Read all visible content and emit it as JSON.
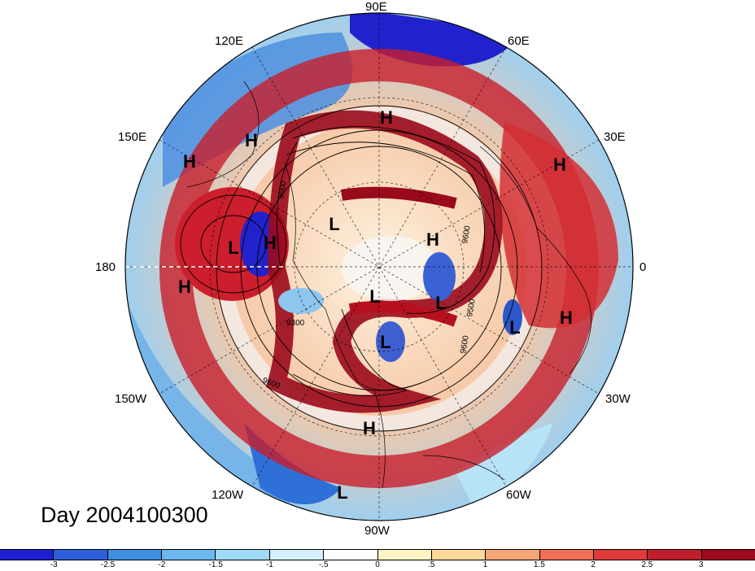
{
  "title": "Day 2004100300",
  "longitude_labels": [
    "90E",
    "60E",
    "30E",
    "0",
    "30W",
    "60W",
    "90W",
    "120W",
    "150W",
    "180",
    "150E",
    "120E"
  ],
  "contour_labels": [
    "9300",
    "9600",
    "9600",
    "9600",
    "9600",
    "9500"
  ],
  "pressure_centers": [
    "H",
    "H",
    "H",
    "H",
    "H",
    "H",
    "H",
    "H",
    "H",
    "L",
    "L",
    "L",
    "L",
    "L",
    "L",
    "L"
  ],
  "colorbar": {
    "colors": [
      "#1f1fd0",
      "#2e5fd8",
      "#3f8fe0",
      "#6cb8ef",
      "#9fdaf6",
      "#d4f1fb",
      "#ffffff",
      "#fdf3c4",
      "#fcd89a",
      "#f4a677",
      "#f07058",
      "#e03b3b",
      "#c01e2b",
      "#a00a1e"
    ],
    "tick_labels": [
      "-3",
      "-2.5",
      "-2",
      "-1.5",
      "-1",
      "-.5",
      "0",
      ".5",
      "1",
      "1.5",
      "2",
      "2.5",
      "3"
    ]
  }
}
